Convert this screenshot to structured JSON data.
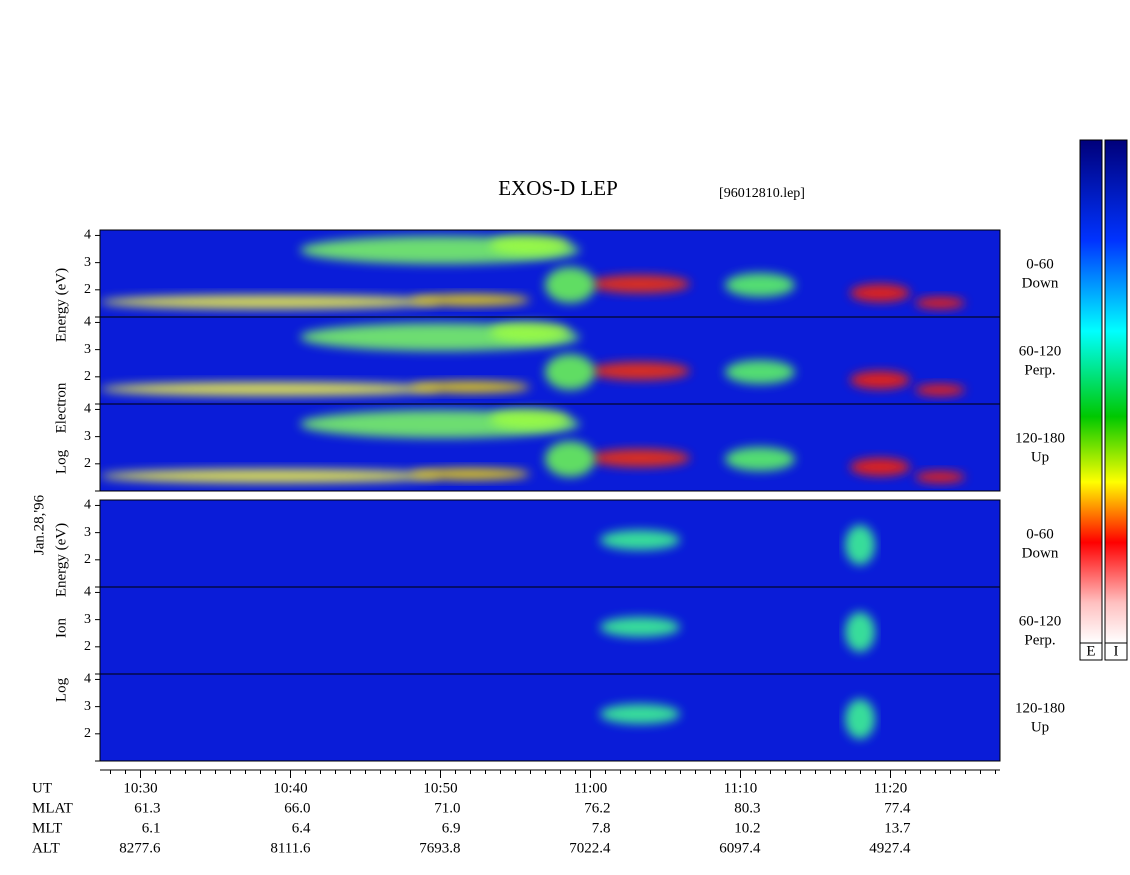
{
  "chart_data": {
    "type": "spectrogram",
    "title": "EXOS-D LEP",
    "file_label": "[96012810.lep]",
    "date_label": "Jan.28,'96",
    "electron_axis_label": [
      "Log",
      "Electron",
      "Energy (eV)"
    ],
    "ion_axis_label": [
      "Log",
      "Ion",
      "Energy (eV)"
    ],
    "panel_labels": [
      [
        "0-60",
        "Down"
      ],
      [
        "60-120",
        "Perp."
      ],
      [
        "120-180",
        "Up"
      ]
    ],
    "ylim": [
      1,
      4.2
    ],
    "yticks": [
      2,
      3,
      4
    ],
    "xlim": [
      627.3,
      687.3
    ],
    "xticks": [
      {
        "value": 630,
        "label": "10:30"
      },
      {
        "value": 640,
        "label": "10:40"
      },
      {
        "value": 650,
        "label": "10:50"
      },
      {
        "value": 660,
        "label": "11:00"
      },
      {
        "value": 670,
        "label": "11:10"
      },
      {
        "value": 680,
        "label": "11:20"
      }
    ],
    "x_row_label": "UT",
    "footer_rows": [
      {
        "label": "MLAT",
        "values": [
          "61.3",
          "66.0",
          "71.0",
          "76.2",
          "80.3",
          "77.4"
        ]
      },
      {
        "label": "MLT",
        "values": [
          "6.1",
          "6.4",
          "6.9",
          "7.8",
          "10.2",
          "13.7"
        ]
      },
      {
        "label": "ALT",
        "values": [
          "8277.6",
          "8111.6",
          "7693.8",
          "7022.4",
          "6097.4",
          "4927.4"
        ]
      }
    ],
    "colorbar_labels": [
      "E",
      "I"
    ]
  }
}
